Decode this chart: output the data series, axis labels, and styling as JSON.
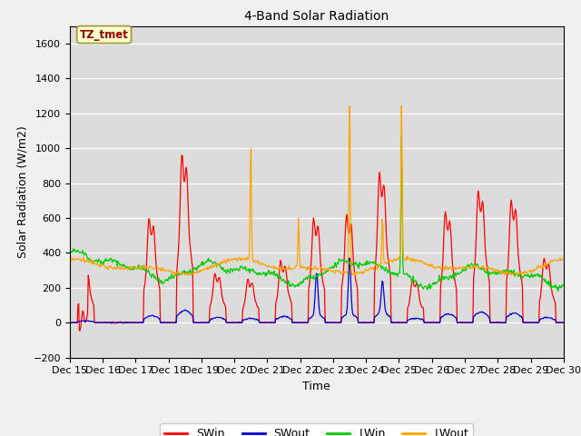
{
  "title": "4-Band Solar Radiation",
  "xlabel": "Time",
  "ylabel": "Solar Radiation (W/m2)",
  "annotation": "TZ_tmet",
  "ylim": [
    -200,
    1700
  ],
  "yticks": [
    -200,
    0,
    200,
    400,
    600,
    800,
    1000,
    1200,
    1400,
    1600
  ],
  "fig_bg": "#f0f0f0",
  "plot_bg": "#dcdcdc",
  "grid_color": "#ffffff",
  "series_colors": {
    "SWin": "#ff0000",
    "SWout": "#0000cc",
    "LWin": "#00cc00",
    "LWout": "#ffa500"
  },
  "legend_labels": [
    "SWin",
    "SWout",
    "LWin",
    "LWout"
  ],
  "legend_colors": [
    "#ff0000",
    "#0000cc",
    "#00cc00",
    "#ffa500"
  ],
  "lw": 0.9
}
